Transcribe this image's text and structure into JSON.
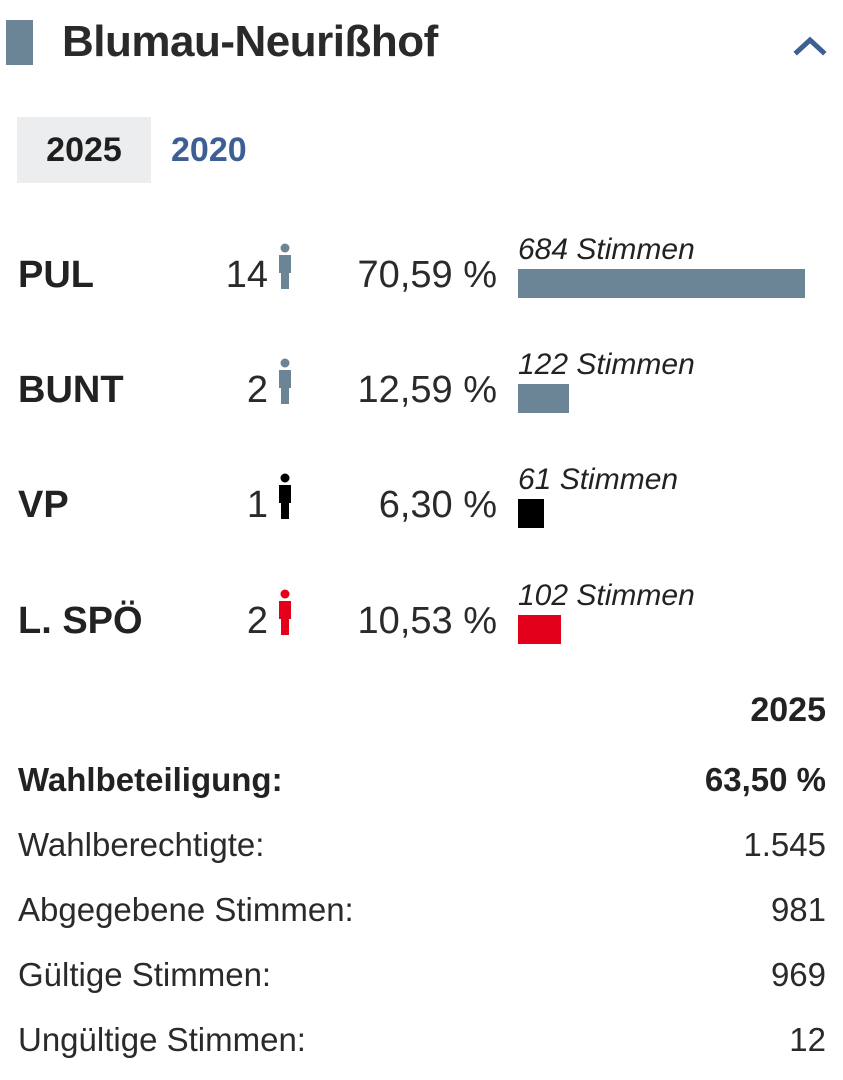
{
  "header": {
    "title": "Blumau-Neurißhof",
    "marker_color": "#6b8596",
    "collapse_icon": "chevron-up-icon"
  },
  "tabs": [
    {
      "label": "2025",
      "active": true
    },
    {
      "label": "2020",
      "active": false
    }
  ],
  "parties": [
    {
      "name": "PUL",
      "seats": "14",
      "percent": "70,59 %",
      "votes_label": "684 Stimmen",
      "votes": 684,
      "color": "#6b8596"
    },
    {
      "name": "BUNT",
      "seats": "2",
      "percent": "12,59 %",
      "votes_label": "122 Stimmen",
      "votes": 122,
      "color": "#6b8596"
    },
    {
      "name": "VP",
      "seats": "1",
      "percent": "6,30 %",
      "votes_label": "61 Stimmen",
      "votes": 61,
      "color": "#000000"
    },
    {
      "name": "L. SPÖ",
      "seats": "2",
      "percent": "10,53 %",
      "votes_label": "102 Stimmen",
      "votes": 102,
      "color": "#e2001a"
    }
  ],
  "stats": {
    "year": "2025",
    "turnout_label": "Wahlbeteiligung:",
    "turnout_value": "63,50 %",
    "eligible_label": "Wahlberechtigte:",
    "eligible_value": "1.545",
    "cast_label": "Abgegebene Stimmen:",
    "cast_value": "981",
    "valid_label": "Gültige Stimmen:",
    "valid_value": "969",
    "invalid_label": "Ungültige Stimmen:",
    "invalid_value": "12"
  }
}
